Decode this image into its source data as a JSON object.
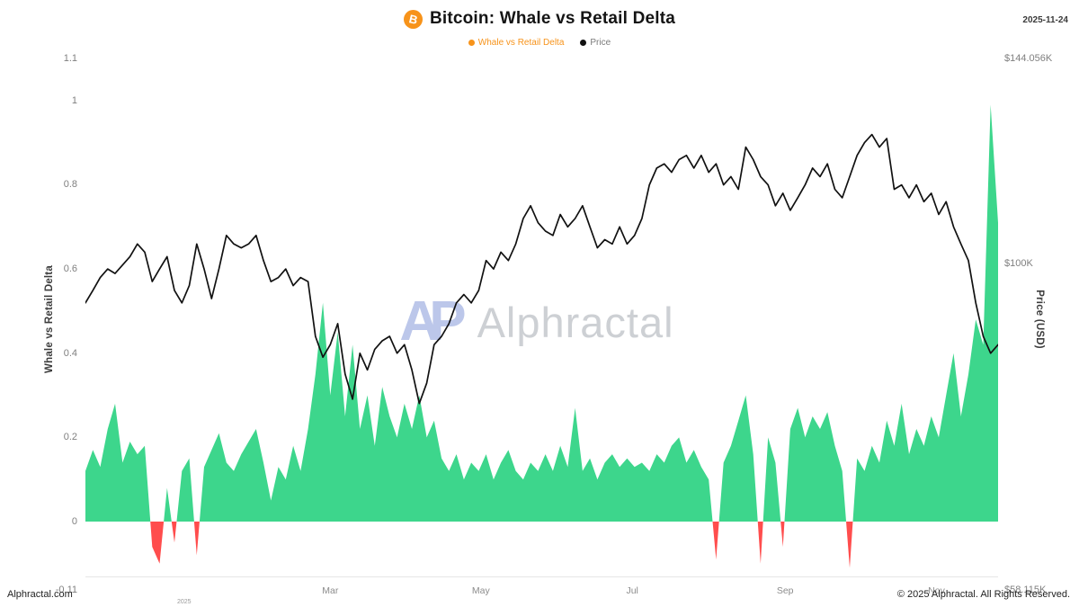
{
  "header": {
    "title": "Bitcoin: Whale vs Retail Delta",
    "icon_letter": "B",
    "icon_color": "#f7931a",
    "date": "2025-11-24"
  },
  "legend": [
    {
      "label": "Whale vs Retail Delta",
      "color": "#f7931a",
      "text_color": "#f7931a"
    },
    {
      "label": "Price",
      "color": "#111111",
      "text_color": "#7a7a7a"
    }
  ],
  "watermark": {
    "logo": "AP",
    "text": "Alphractal"
  },
  "footer": {
    "left": "Alphractal.com",
    "right": "© 2025 Alphractal. All Rights Reserved."
  },
  "axes": {
    "left": {
      "title": "Whale vs Retail Delta",
      "range": [
        -0.11,
        1.1
      ],
      "ticks": [
        {
          "v": 1.1,
          "label": "1.1"
        },
        {
          "v": 1,
          "label": "1"
        },
        {
          "v": 0.8,
          "label": "0.8"
        },
        {
          "v": 0.6,
          "label": "0.6"
        },
        {
          "v": 0.4,
          "label": "0.4"
        },
        {
          "v": 0.2,
          "label": "0.2"
        },
        {
          "v": 0,
          "label": "0"
        },
        {
          "v": -0.11,
          "label": "-0.11",
          "edge": "bottom"
        }
      ]
    },
    "right": {
      "title": "Price (USD)",
      "scale": "log",
      "range": [
        58115,
        144056
      ],
      "ticks": [
        {
          "value": 144056,
          "label": "$144.056K"
        },
        {
          "value": 100000,
          "label": "$100K"
        },
        {
          "value": 58115,
          "label": "$58.115K",
          "edge": "bottom"
        }
      ]
    },
    "x": {
      "ticks": [
        {
          "label": "2025",
          "i": 13.3,
          "minor": true
        },
        {
          "label": "Mar",
          "i": 33
        },
        {
          "label": "May",
          "i": 53.3
        },
        {
          "label": "Jul",
          "i": 73.7
        },
        {
          "label": "Sep",
          "i": 94.3
        },
        {
          "label": "Nov",
          "i": 114.7
        }
      ]
    }
  },
  "chart_data": {
    "type": "area+line",
    "title": "Bitcoin: Whale vs Retail Delta",
    "start_date": "2024-11-22",
    "interval_days": 3,
    "xlabel": "",
    "ylabel_left": "Whale vs Retail Delta",
    "ylabel_right": "Price (USD)",
    "ylim_left": [
      -0.11,
      1.1
    ],
    "ylim_right": [
      58115,
      144056
    ],
    "grid": false,
    "legend_position": "top-center",
    "series": [
      {
        "name": "Whale vs Retail Delta",
        "type": "area",
        "axis": "left",
        "positive_color": "#3dd68c",
        "negative_color": "#ff4d4d",
        "values": [
          0.12,
          0.17,
          0.13,
          0.22,
          0.28,
          0.14,
          0.19,
          0.16,
          0.18,
          -0.06,
          -0.1,
          0.08,
          -0.05,
          0.12,
          0.15,
          -0.08,
          0.13,
          0.17,
          0.21,
          0.14,
          0.12,
          0.16,
          0.19,
          0.22,
          0.14,
          0.05,
          0.13,
          0.1,
          0.18,
          0.12,
          0.22,
          0.35,
          0.52,
          0.3,
          0.45,
          0.25,
          0.42,
          0.22,
          0.3,
          0.18,
          0.32,
          0.25,
          0.2,
          0.28,
          0.22,
          0.3,
          0.2,
          0.24,
          0.15,
          0.12,
          0.16,
          0.1,
          0.14,
          0.12,
          0.16,
          0.1,
          0.14,
          0.17,
          0.12,
          0.1,
          0.14,
          0.12,
          0.16,
          0.12,
          0.18,
          0.13,
          0.27,
          0.12,
          0.15,
          0.1,
          0.14,
          0.16,
          0.13,
          0.15,
          0.13,
          0.14,
          0.12,
          0.16,
          0.14,
          0.18,
          0.2,
          0.14,
          0.17,
          0.13,
          0.1,
          -0.09,
          0.14,
          0.18,
          0.24,
          0.3,
          0.16,
          -0.1,
          0.2,
          0.14,
          -0.06,
          0.22,
          0.27,
          0.2,
          0.25,
          0.22,
          0.26,
          0.18,
          0.12,
          -0.11,
          0.15,
          0.12,
          0.18,
          0.14,
          0.24,
          0.18,
          0.28,
          0.16,
          0.22,
          0.18,
          0.25,
          0.2,
          0.3,
          0.4,
          0.25,
          0.35,
          0.48,
          0.42,
          0.99,
          0.71
        ]
      },
      {
        "name": "Price",
        "type": "line",
        "axis": "right",
        "color": "#111111",
        "values_usd": [
          93200,
          95300,
          97500,
          99000,
          98200,
          99700,
          101200,
          103500,
          102000,
          96800,
          99000,
          101200,
          95300,
          93200,
          96100,
          103500,
          99000,
          93900,
          99000,
          105100,
          103500,
          102800,
          103500,
          105100,
          100500,
          96800,
          97500,
          99000,
          96100,
          97500,
          96800,
          87800,
          84600,
          86500,
          89800,
          82100,
          78500,
          85200,
          82700,
          85800,
          87100,
          87800,
          85200,
          86500,
          82700,
          77900,
          80800,
          86500,
          87800,
          89800,
          93200,
          94600,
          93200,
          95300,
          100500,
          99000,
          102000,
          100500,
          103500,
          108300,
          110800,
          107500,
          105900,
          105100,
          109100,
          106700,
          108300,
          110800,
          106700,
          102800,
          104300,
          103500,
          106700,
          103500,
          105100,
          108300,
          115000,
          118500,
          119400,
          117600,
          120300,
          121200,
          118500,
          121200,
          117600,
          119400,
          115000,
          116700,
          114100,
          123000,
          120300,
          116700,
          115000,
          110800,
          113300,
          109900,
          112400,
          115000,
          118500,
          116700,
          119400,
          114100,
          112400,
          116700,
          121200,
          124000,
          125800,
          123000,
          124900,
          114100,
          115000,
          112400,
          115000,
          111600,
          113300,
          109100,
          111600,
          106700,
          103500,
          100500,
          93200,
          87800,
          85200,
          86500
        ]
      }
    ]
  }
}
